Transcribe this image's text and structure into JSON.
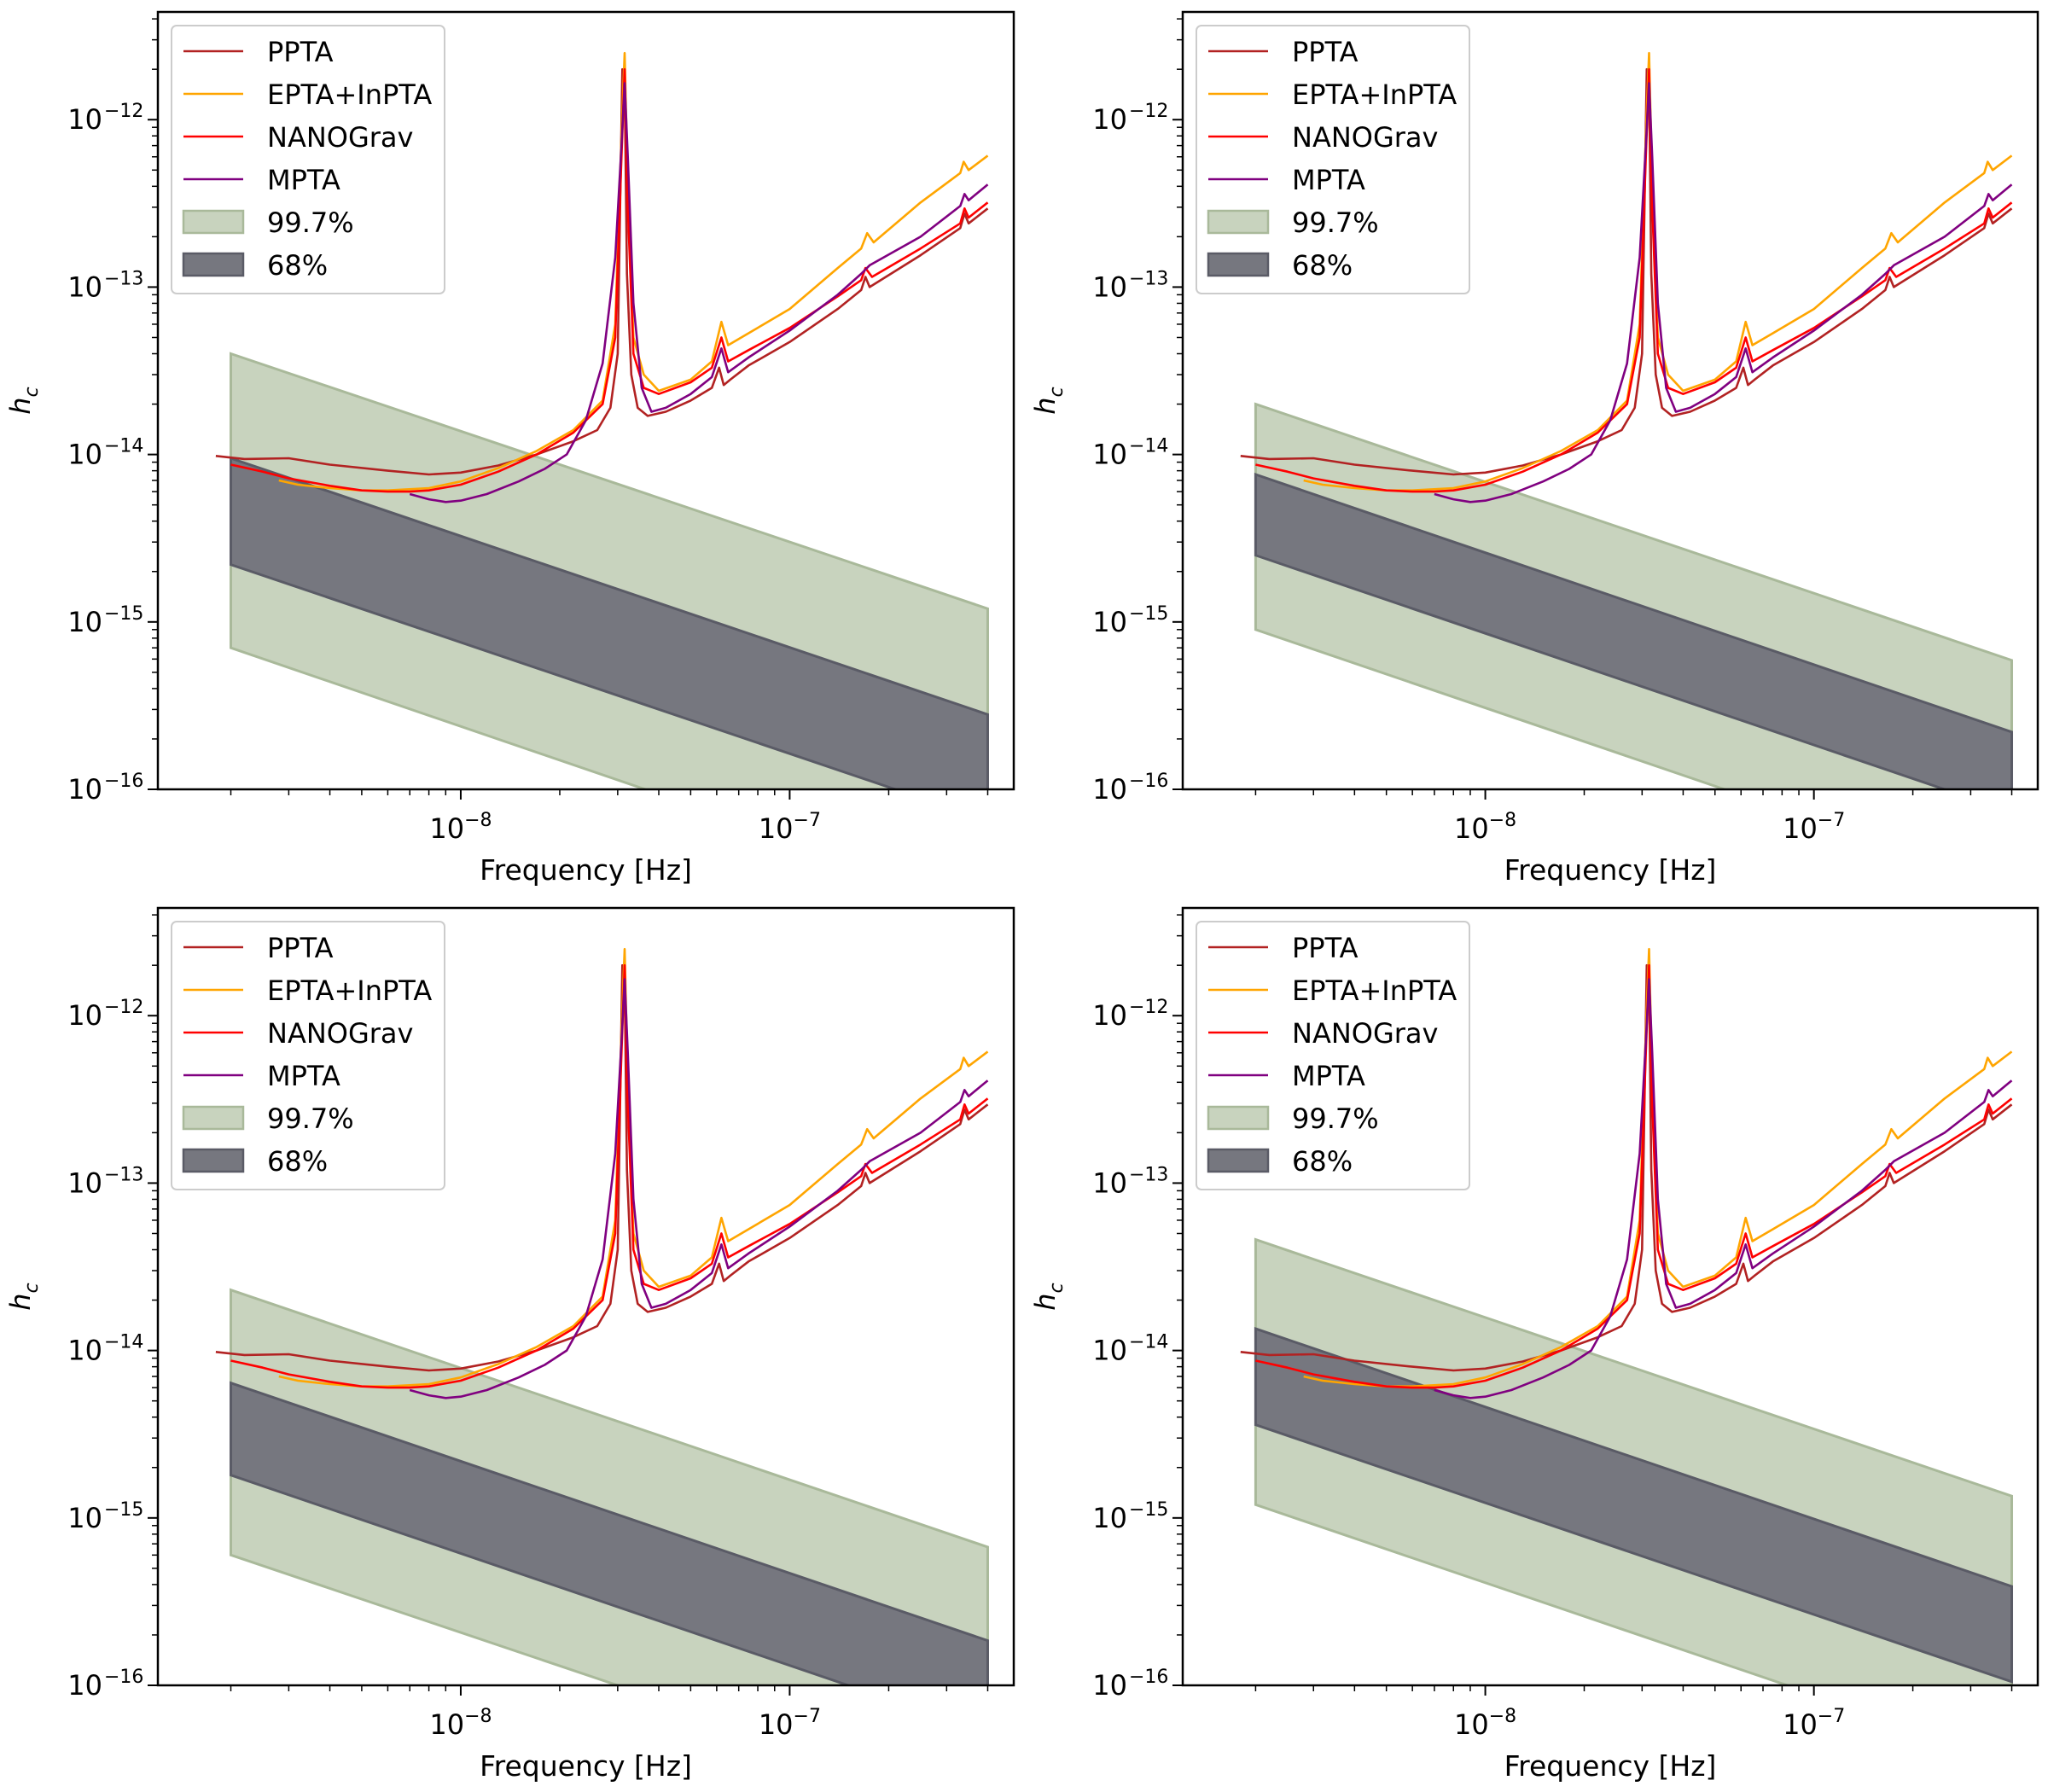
{
  "colors": {
    "PPTA": "#b22222",
    "EPTA+InPTA": "#ffa500",
    "NANOGrav": "#ff0000",
    "MPTA": "#800080",
    "band_997_fill": "#c8d3be",
    "band_997_edge": "#a9b99a",
    "band_68_fill": "#76777f",
    "band_68_edge": "#5a5b66"
  },
  "legend_labels": [
    "PPTA",
    "EPTA+InPTA",
    "NANOGrav",
    "MPTA",
    "99.7%",
    "68%"
  ],
  "curves": {
    "PPTA": {
      "x": [
        1.8e-09,
        2.2e-09,
        3e-09,
        4e-09,
        6e-09,
        8e-09,
        1e-08,
        1.3e-08,
        1.7e-08,
        2.2e-08,
        2.6e-08,
        2.85e-08,
        3e-08,
        3.1e-08,
        3.15e-08,
        3.2e-08,
        3.3e-08,
        3.45e-08,
        3.7e-08,
        4.2e-08,
        5e-08,
        5.8e-08,
        6.1e-08,
        6.3e-08,
        6.6e-08,
        7.5e-08,
        1e-07,
        1.4e-07,
        1.65e-07,
        1.7e-07,
        1.75e-07,
        2.5e-07,
        3.3e-07,
        3.4e-07,
        3.5e-07,
        4e-07
      ],
      "y": [
        9.8e-15,
        9.4e-15,
        9.5e-15,
        8.7e-15,
        8e-15,
        7.6e-15,
        7.8e-15,
        8.6e-15,
        1e-14,
        1.2e-14,
        1.4e-14,
        1.9e-14,
        4e-14,
        2e-12,
        1.7e-12,
        1.2e-13,
        3e-14,
        1.9e-14,
        1.7e-14,
        1.8e-14,
        2.1e-14,
        2.5e-14,
        3.3e-14,
        2.6e-14,
        2.8e-14,
        3.4e-14,
        4.7e-14,
        7.4e-14,
        9.6e-14,
        1.15e-13,
        1e-13,
        1.55e-13,
        2.25e-13,
        2.75e-13,
        2.4e-13,
        2.95e-13
      ]
    },
    "EPTA+InPTA": {
      "x": [
        2.8e-09,
        3.2e-09,
        4e-09,
        5e-09,
        6e-09,
        8e-09,
        1e-08,
        1.3e-08,
        1.7e-08,
        2.2e-08,
        2.7e-08,
        2.95e-08,
        3.08e-08,
        3.15e-08,
        3.22e-08,
        3.35e-08,
        3.6e-08,
        4e-08,
        5e-08,
        5.8e-08,
        6.2e-08,
        6.5e-08,
        7.5e-08,
        1e-07,
        1.4e-07,
        1.65e-07,
        1.72e-07,
        1.8e-07,
        2.5e-07,
        3.3e-07,
        3.38e-07,
        3.5e-07,
        4e-07
      ],
      "y": [
        7e-15,
        6.6e-15,
        6.3e-15,
        6.1e-15,
        6.1e-15,
        6.3e-15,
        6.9e-15,
        8.3e-15,
        1.05e-14,
        1.4e-14,
        2.1e-14,
        6e-14,
        8e-13,
        2.5e-12,
        4e-13,
        5e-14,
        3e-14,
        2.4e-14,
        2.8e-14,
        3.6e-14,
        6.2e-14,
        4.5e-14,
        5.3e-14,
        7.4e-14,
        1.3e-13,
        1.7e-13,
        2.1e-13,
        1.85e-13,
        3.2e-13,
        4.8e-13,
        5.6e-13,
        5e-13,
        6.1e-13
      ]
    },
    "NANOGrav": {
      "x": [
        2e-09,
        2.5e-09,
        3e-09,
        4e-09,
        5e-09,
        6e-09,
        7e-09,
        8e-09,
        1e-08,
        1.3e-08,
        1.7e-08,
        2.2e-08,
        2.7e-08,
        2.95e-08,
        3.08e-08,
        3.15e-08,
        3.22e-08,
        3.35e-08,
        3.6e-08,
        4e-08,
        5e-08,
        5.8e-08,
        6.2e-08,
        6.5e-08,
        7.5e-08,
        1e-07,
        1.4e-07,
        1.65e-07,
        1.7e-07,
        1.78e-07,
        2.5e-07,
        3.3e-07,
        3.4e-07,
        3.5e-07,
        4e-07
      ],
      "y": [
        8.7e-15,
        7.9e-15,
        7.2e-15,
        6.5e-15,
        6.1e-15,
        6e-15,
        6e-15,
        6.1e-15,
        6.6e-15,
        7.9e-15,
        1e-14,
        1.35e-14,
        2e-14,
        5e-14,
        6e-13,
        2e-12,
        3e-13,
        4e-14,
        2.5e-14,
        2.3e-14,
        2.7e-14,
        3.3e-14,
        5e-14,
        3.6e-14,
        4.2e-14,
        5.7e-14,
        8.8e-14,
        1.1e-13,
        1.3e-13,
        1.15e-13,
        1.7e-13,
        2.4e-13,
        2.95e-13,
        2.6e-13,
        3.2e-13
      ]
    },
    "MPTA": {
      "x": [
        7e-09,
        8e-09,
        9e-09,
        1e-08,
        1.2e-08,
        1.5e-08,
        1.8e-08,
        2.1e-08,
        2.4e-08,
        2.7e-08,
        2.95e-08,
        3.08e-08,
        3.15e-08,
        3.22e-08,
        3.35e-08,
        3.55e-08,
        3.8e-08,
        4.2e-08,
        5e-08,
        5.8e-08,
        6.2e-08,
        6.5e-08,
        7.5e-08,
        1e-07,
        1.4e-07,
        1.65e-07,
        1.75e-07,
        2.5e-07,
        3.3e-07,
        3.4e-07,
        3.5e-07,
        4e-07
      ],
      "y": [
        5.8e-15,
        5.4e-15,
        5.2e-15,
        5.3e-15,
        5.8e-15,
        6.9e-15,
        8.2e-15,
        1e-14,
        1.6e-14,
        3.5e-14,
        1.5e-13,
        7e-13,
        1.65e-12,
        6e-13,
        8e-14,
        2.5e-14,
        1.8e-14,
        1.9e-14,
        2.3e-14,
        2.9e-14,
        4.3e-14,
        3.1e-14,
        3.8e-14,
        5.5e-14,
        9e-14,
        1.2e-13,
        1.35e-13,
        2e-13,
        3.05e-13,
        3.6e-13,
        3.3e-13,
        4.1e-13
      ]
    }
  },
  "chart_data": [
    {
      "type": "line",
      "xlabel": "Frequency [Hz]",
      "ylabel": "h_c",
      "xscale": "log",
      "yscale": "log",
      "xlim": [
        1.2e-09,
        4.8e-07
      ],
      "ylim": [
        1e-16,
        4.4e-12
      ],
      "xticks": [
        {
          "v": 1e-08,
          "base": "10",
          "exp": "−8"
        },
        {
          "v": 1e-07,
          "base": "10",
          "exp": "−7"
        }
      ],
      "yticks": [
        {
          "v": 1e-16,
          "base": "10",
          "exp": "−16"
        },
        {
          "v": 1e-15,
          "base": "10",
          "exp": "−15"
        },
        {
          "v": 1e-14,
          "base": "10",
          "exp": "−14"
        },
        {
          "v": 1e-13,
          "base": "10",
          "exp": "−13"
        },
        {
          "v": 1e-12,
          "base": "10",
          "exp": "−12"
        }
      ],
      "legend_position": "upper-left",
      "series_ref": [
        "PPTA",
        "EPTA+InPTA",
        "NANOGrav",
        "MPTA"
      ],
      "bands": {
        "x_range": [
          2e-09,
          4e-07
        ],
        "band_99_7": {
          "upper": [
            4e-14,
            1.2e-15
          ],
          "lower": [
            7e-16,
            2e-17
          ]
        },
        "band_68": {
          "upper": [
            9.5e-15,
            2.8e-16
          ],
          "lower": [
            2.2e-15,
            6.5e-17
          ]
        }
      }
    },
    {
      "type": "line",
      "xlabel": "Frequency [Hz]",
      "ylabel": "h_c",
      "xscale": "log",
      "yscale": "log",
      "xlim": [
        1.2e-09,
        4.8e-07
      ],
      "ylim": [
        1e-16,
        4.4e-12
      ],
      "xticks": [
        {
          "v": 1e-08,
          "base": "10",
          "exp": "−8"
        },
        {
          "v": 1e-07,
          "base": "10",
          "exp": "−7"
        }
      ],
      "yticks": [
        {
          "v": 1e-16,
          "base": "10",
          "exp": "−16"
        },
        {
          "v": 1e-15,
          "base": "10",
          "exp": "−15"
        },
        {
          "v": 1e-14,
          "base": "10",
          "exp": "−14"
        },
        {
          "v": 1e-13,
          "base": "10",
          "exp": "−13"
        },
        {
          "v": 1e-12,
          "base": "10",
          "exp": "−12"
        }
      ],
      "legend_position": "upper-left",
      "series_ref": [
        "PPTA",
        "EPTA+InPTA",
        "NANOGrav",
        "MPTA"
      ],
      "bands": {
        "x_range": [
          2e-09,
          4e-07
        ],
        "band_99_7": {
          "upper": [
            2e-14,
            5.9e-16
          ],
          "lower": [
            9e-16,
            2.6e-17
          ]
        },
        "band_68": {
          "upper": [
            7.6e-15,
            2.2e-16
          ],
          "lower": [
            2.5e-15,
            7.3e-17
          ]
        }
      }
    },
    {
      "type": "line",
      "xlabel": "Frequency [Hz]",
      "ylabel": "h_c",
      "xscale": "log",
      "yscale": "log",
      "xlim": [
        1.2e-09,
        4.8e-07
      ],
      "ylim": [
        1e-16,
        4.4e-12
      ],
      "xticks": [
        {
          "v": 1e-08,
          "base": "10",
          "exp": "−8"
        },
        {
          "v": 1e-07,
          "base": "10",
          "exp": "−7"
        }
      ],
      "yticks": [
        {
          "v": 1e-16,
          "base": "10",
          "exp": "−16"
        },
        {
          "v": 1e-15,
          "base": "10",
          "exp": "−15"
        },
        {
          "v": 1e-14,
          "base": "10",
          "exp": "−14"
        },
        {
          "v": 1e-13,
          "base": "10",
          "exp": "−13"
        },
        {
          "v": 1e-12,
          "base": "10",
          "exp": "−12"
        }
      ],
      "legend_position": "upper-left",
      "series_ref": [
        "PPTA",
        "EPTA+InPTA",
        "NANOGrav",
        "MPTA"
      ],
      "bands": {
        "x_range": [
          2e-09,
          4e-07
        ],
        "band_99_7": {
          "upper": [
            2.3e-14,
            6.7e-16
          ],
          "lower": [
            6e-16,
            1.8e-17
          ]
        },
        "band_68": {
          "upper": [
            6.4e-15,
            1.85e-16
          ],
          "lower": [
            1.8e-15,
            5.2e-17
          ]
        }
      }
    },
    {
      "type": "line",
      "xlabel": "Frequency [Hz]",
      "ylabel": "h_c",
      "xscale": "log",
      "yscale": "log",
      "xlim": [
        1.2e-09,
        4.8e-07
      ],
      "ylim": [
        1e-16,
        4.4e-12
      ],
      "xticks": [
        {
          "v": 1e-08,
          "base": "10",
          "exp": "−8"
        },
        {
          "v": 1e-07,
          "base": "10",
          "exp": "−7"
        }
      ],
      "yticks": [
        {
          "v": 1e-16,
          "base": "10",
          "exp": "−16"
        },
        {
          "v": 1e-15,
          "base": "10",
          "exp": "−15"
        },
        {
          "v": 1e-14,
          "base": "10",
          "exp": "−14"
        },
        {
          "v": 1e-13,
          "base": "10",
          "exp": "−13"
        },
        {
          "v": 1e-12,
          "base": "10",
          "exp": "−12"
        }
      ],
      "legend_position": "upper-left",
      "series_ref": [
        "PPTA",
        "EPTA+InPTA",
        "NANOGrav",
        "MPTA"
      ],
      "bands": {
        "x_range": [
          2e-09,
          4e-07
        ],
        "band_99_7": {
          "upper": [
            4.6e-14,
            1.35e-15
          ],
          "lower": [
            1.2e-15,
            3.5e-17
          ]
        },
        "band_68": {
          "upper": [
            1.35e-14,
            3.9e-16
          ],
          "lower": [
            3.6e-15,
            1.05e-16
          ]
        }
      }
    }
  ]
}
